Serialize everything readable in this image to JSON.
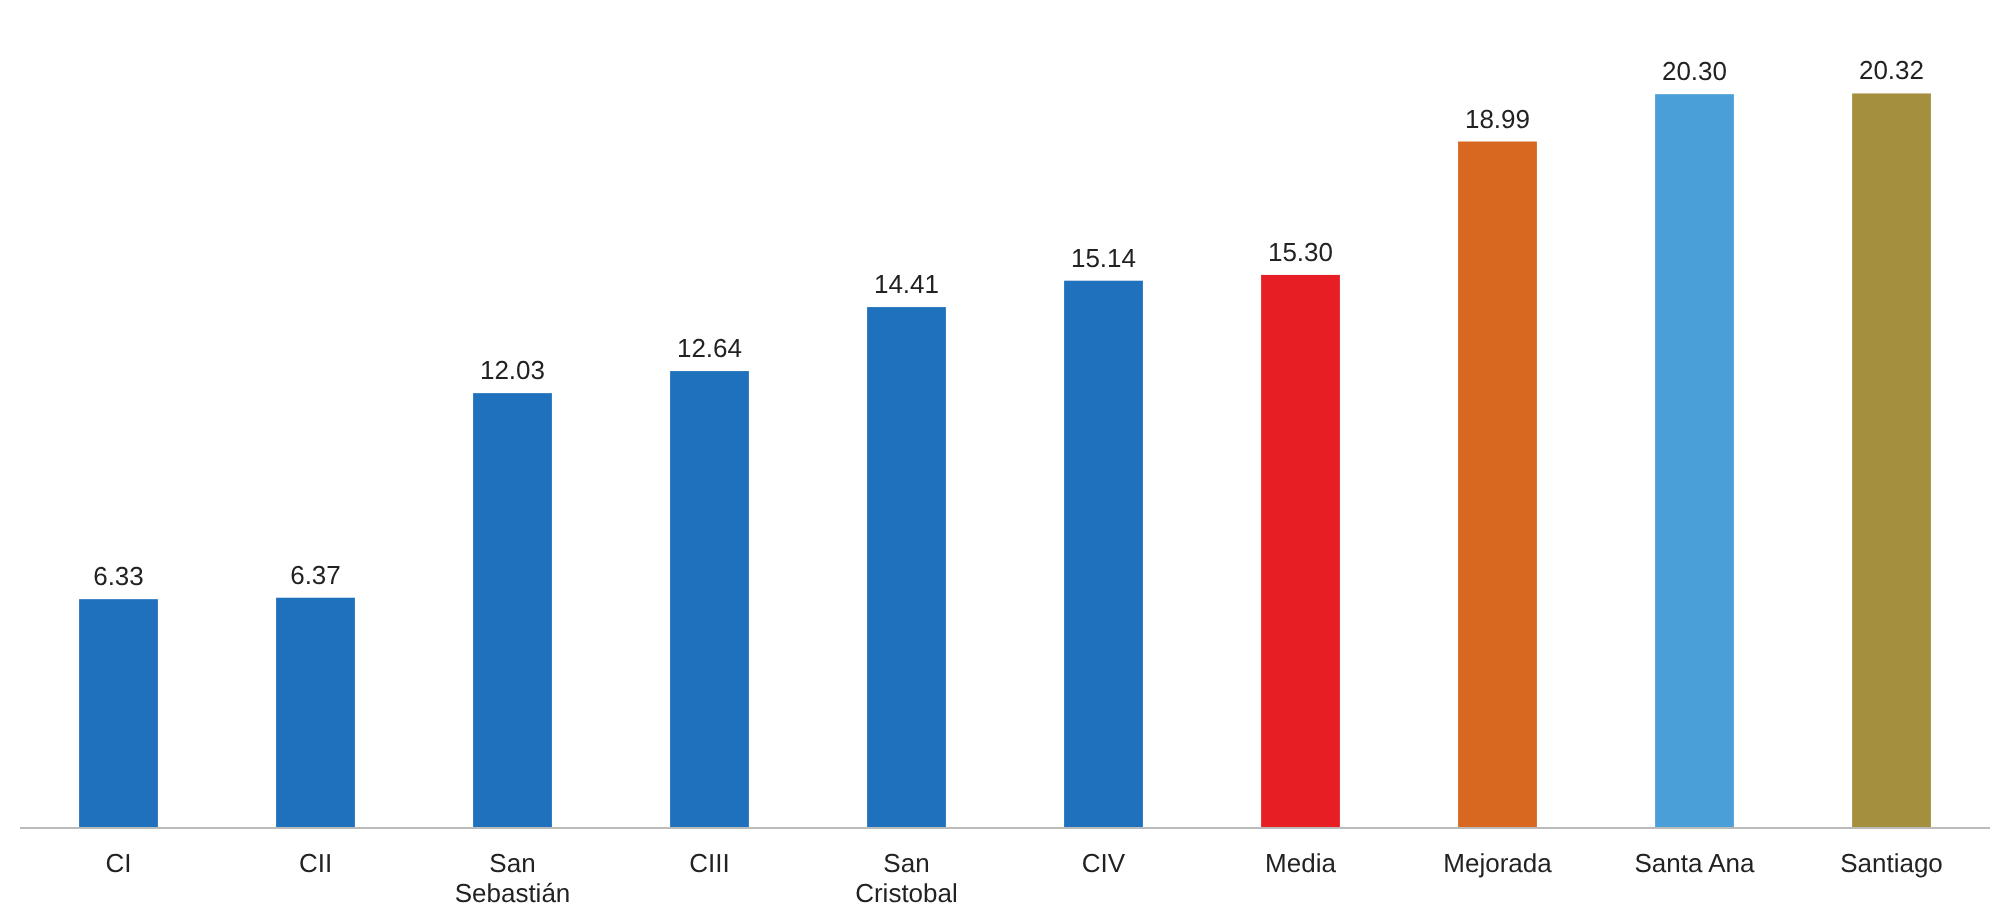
{
  "chart_data": {
    "type": "bar",
    "categories": [
      "CI",
      "CII",
      "San\nSebastián",
      "CIII",
      "San\nCristobal",
      "CIV",
      "Media",
      "Mejorada",
      "Santa Ana",
      "Santiago"
    ],
    "values": [
      6.33,
      6.37,
      12.03,
      12.64,
      14.41,
      15.14,
      15.3,
      18.99,
      20.3,
      20.32
    ],
    "value_labels": [
      "6.33",
      "6.37",
      "12.03",
      "12.64",
      "14.41",
      "15.14",
      "15.30",
      "18.99",
      "20.30",
      "20.32"
    ],
    "colors": [
      "#1f70bd",
      "#1f70bd",
      "#1f70bd",
      "#1f70bd",
      "#1f70bd",
      "#1f70bd",
      "#e81e25",
      "#d8671f",
      "#4a9fd8",
      "#a38f3e"
    ]
  }
}
